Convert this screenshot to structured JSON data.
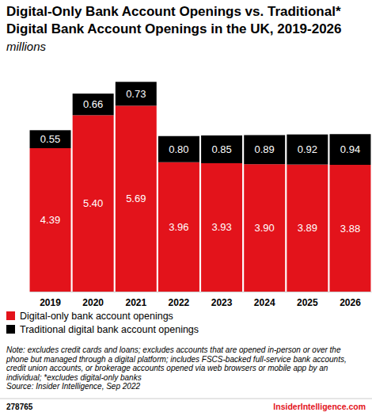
{
  "chart_data": {
    "type": "bar",
    "stacked": true,
    "data_labels": true,
    "tick_labels": "x",
    "title": "Digital-Only Bank Account Openings vs. Traditional* Digital Bank Account Openings in the UK, 2019-2026",
    "subtitle": "millions",
    "categories": [
      "2019",
      "2020",
      "2021",
      "2022",
      "2023",
      "2024",
      "2025",
      "2026"
    ],
    "ylim": [
      0,
      6.5
    ],
    "series": [
      {
        "name": "Digital-only bank account openings",
        "color": "#e3131b",
        "values": [
          4.39,
          5.4,
          5.69,
          3.96,
          3.93,
          3.9,
          3.89,
          3.88
        ],
        "value_labels": [
          "4.39",
          "5.40",
          "5.69",
          "3.96",
          "3.93",
          "3.90",
          "3.89",
          "3.88"
        ]
      },
      {
        "name": "Traditional digital bank account openings",
        "color": "#000000",
        "values": [
          0.55,
          0.66,
          0.73,
          0.8,
          0.85,
          0.89,
          0.92,
          0.94
        ],
        "value_labels": [
          "0.55",
          "0.66",
          "0.73",
          "0.80",
          "0.85",
          "0.89",
          "0.92",
          "0.94"
        ]
      }
    ],
    "annotations": [
      "Note: excludes credit cards and loans; excludes accounts that are opened in-person or over the phone but managed through a digital platform; includes FSCS-backed full-service bank accounts, credit union accounts, or brokerage accounts opened via web browsers or mobile app by an individual; *excludes digital-only banks",
      "Source: Insider Intelligence, Sep 2022",
      "278765",
      "InsiderIntelligence.com"
    ]
  }
}
